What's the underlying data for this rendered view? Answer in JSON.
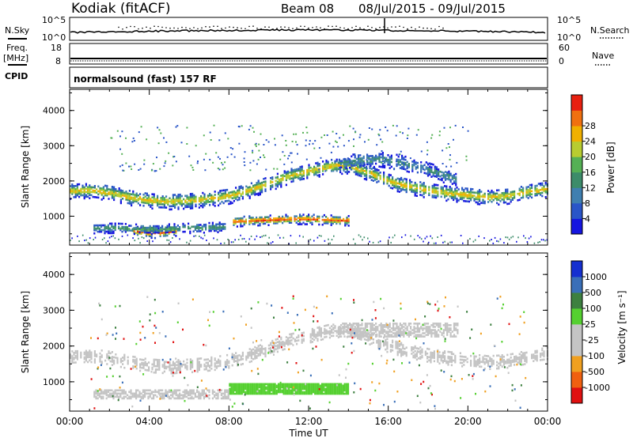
{
  "header": {
    "title": "Kodiak (fitACF)",
    "beam": "Beam 08",
    "date_range": "08/Jul/2015 - 09/Jul/2015"
  },
  "status_panels": {
    "noise": {
      "left_label": "N.Sky",
      "right_label": "N.Search",
      "left_ticks": [
        "10^5",
        "10^0"
      ],
      "right_ticks": [
        "10^5",
        "10^0"
      ]
    },
    "freq": {
      "left_label_1": "Freq.",
      "left_label_2": "[MHz]",
      "right_label": "Nave",
      "left_ticks": [
        "18",
        "8"
      ],
      "right_ticks": [
        "60",
        "0"
      ]
    },
    "cpid": {
      "left_label": "CPID",
      "text": "normalsound (fast) 157 RF"
    }
  },
  "colors": {
    "power_scale": [
      "#1515e0",
      "#2a55c8",
      "#3f7fb0",
      "#3c8c6a",
      "#55b055",
      "#b8cc30",
      "#f0b000",
      "#f07010",
      "#e82010"
    ],
    "velocity_scale": [
      "#1530d0",
      "#3a6fb8",
      "#3d8040",
      "#55d030",
      "#c4c4c4",
      "#c4c4c4",
      "#f0a020",
      "#f06010",
      "#e01010"
    ],
    "ground_scatter": "#c4c4c4"
  },
  "chart_data": [
    {
      "type": "heatmap",
      "panel": "power",
      "ylabel": "Slant Range [km]",
      "xlabel": "",
      "ylim": [
        180,
        4600
      ],
      "yticks": [
        "1000",
        "2000",
        "3000",
        "4000"
      ],
      "xlim_hours": [
        0,
        24
      ],
      "colorbar": {
        "label": "Power [dB]",
        "ticks": [
          "4",
          "8",
          "12",
          "16",
          "20",
          "24",
          "28"
        ],
        "range": [
          0,
          32
        ]
      },
      "echo_bands": [
        {
          "t": [
            0.0,
            24.0
          ],
          "center_km": [
            1700,
            1720,
            1650,
            1520,
            1430,
            1400,
            1430,
            1480,
            1560,
            1720,
            1920,
            2130,
            2260,
            2400,
            2420,
            2220,
            1980,
            1830,
            1720,
            1640,
            1580,
            1520,
            1560,
            1680,
            1760
          ],
          "width_km": 280,
          "peak_db": 22
        },
        {
          "t": [
            8.2,
            14.0
          ],
          "center_km": [
            830,
            860,
            880,
            900,
            900,
            880,
            860
          ],
          "width_km": 180,
          "peak_db": 28
        },
        {
          "t": [
            3.2,
            5.3
          ],
          "center_km": [
            560,
            520,
            500,
            520,
            560
          ],
          "width_km": 170,
          "peak_db": 28
        },
        {
          "t": [
            1.2,
            7.8
          ],
          "center_km": [
            640,
            650,
            620,
            620,
            640,
            660,
            680
          ],
          "width_km": 180,
          "peak_db": 14
        },
        {
          "t": [
            13.5,
            19.5
          ],
          "center_km": [
            2480,
            2560,
            2600,
            2520,
            2380,
            2200,
            2000
          ],
          "width_km": 260,
          "peak_db": 12
        }
      ]
    },
    {
      "type": "heatmap",
      "panel": "velocity",
      "ylabel": "Slant Range [km]",
      "xlabel": "Time UT",
      "ylim": [
        180,
        4600
      ],
      "yticks": [
        "1000",
        "2000",
        "3000",
        "4000"
      ],
      "xlim_hours": [
        0,
        24
      ],
      "xticks": [
        "00:00",
        "04:00",
        "08:00",
        "12:00",
        "16:00",
        "20:00",
        "00:00"
      ],
      "colorbar": {
        "label": "Velocity [m s⁻¹]",
        "ticks": [
          "1000",
          "500",
          "100",
          "25",
          "-25",
          "-100",
          "-500",
          "-1000"
        ]
      },
      "features": [
        {
          "kind": "ground_scatter",
          "t": [
            0.0,
            24.0
          ],
          "center_km": [
            1700,
            1720,
            1650,
            1520,
            1430,
            1400,
            1430,
            1480,
            1560,
            1720,
            1920,
            2130,
            2260,
            2400,
            2420,
            2220,
            1980,
            1830,
            1720,
            1640,
            1580,
            1520,
            1560,
            1680,
            1760
          ],
          "width_km": 280
        },
        {
          "kind": "positive_velocity_patch",
          "t": [
            8.0,
            14.0
          ],
          "range_km": [
            650,
            920
          ],
          "approx_velocity": 100
        },
        {
          "kind": "ground_scatter",
          "t": [
            1.2,
            8.0
          ],
          "range_km": [
            520,
            760
          ]
        },
        {
          "kind": "ground_scatter",
          "t": [
            13.5,
            19.5
          ],
          "range_km": [
            2250,
            2650
          ]
        }
      ]
    }
  ]
}
